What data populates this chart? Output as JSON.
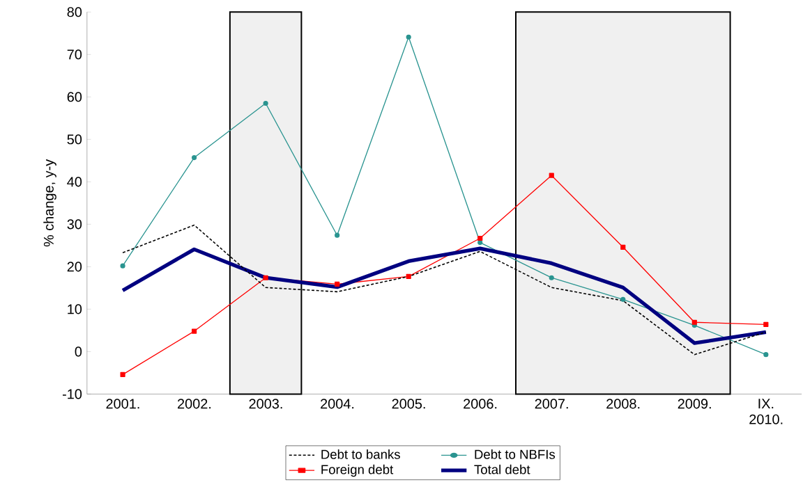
{
  "chart_data": {
    "type": "line",
    "ylabel": "% change, y-y",
    "categories": [
      "2001.",
      "2002.",
      "2003.",
      "2004.",
      "2005.",
      "2006.",
      "2007.",
      "2008.",
      "2009.",
      "IX. 2010."
    ],
    "series": [
      {
        "name": "Debt to banks",
        "color": "#000000",
        "marker": "none",
        "line_style": "dashed",
        "values": [
          23.3,
          29.8,
          15.1,
          14.1,
          17.7,
          23.6,
          15.1,
          12.0,
          -0.7,
          4.6
        ]
      },
      {
        "name": "Debt to NBFIs",
        "color": "#2a9490",
        "marker": "circle",
        "line_style": "solid",
        "values": [
          20.2,
          45.7,
          58.5,
          27.4,
          74.1,
          25.7,
          17.4,
          12.3,
          6.2,
          -0.7
        ]
      },
      {
        "name": "Foreign debt",
        "color": "#ff0000",
        "marker": "square",
        "line_style": "solid",
        "values": [
          -5.4,
          4.8,
          17.4,
          15.9,
          17.7,
          26.7,
          41.5,
          24.6,
          6.9,
          6.4
        ]
      },
      {
        "name": "Total debt",
        "color": "#000080",
        "marker": "none",
        "line_style": "solid",
        "values": [
          14.4,
          24.1,
          17.4,
          15.2,
          21.3,
          24.3,
          20.8,
          15.1,
          2.0,
          4.6
        ]
      }
    ],
    "bands": [
      {
        "axis": "x",
        "from": "2003.",
        "to": "2003.",
        "color": "#f0f0f0"
      },
      {
        "axis": "x",
        "from": "2007.",
        "to": "2009.",
        "color": "#f0f0f0"
      }
    ],
    "ylim": [
      -10,
      80
    ],
    "yticks": [
      -10,
      0,
      10,
      20,
      30,
      40,
      50,
      60,
      70,
      80
    ],
    "grid": false,
    "legend": "bottom"
  }
}
